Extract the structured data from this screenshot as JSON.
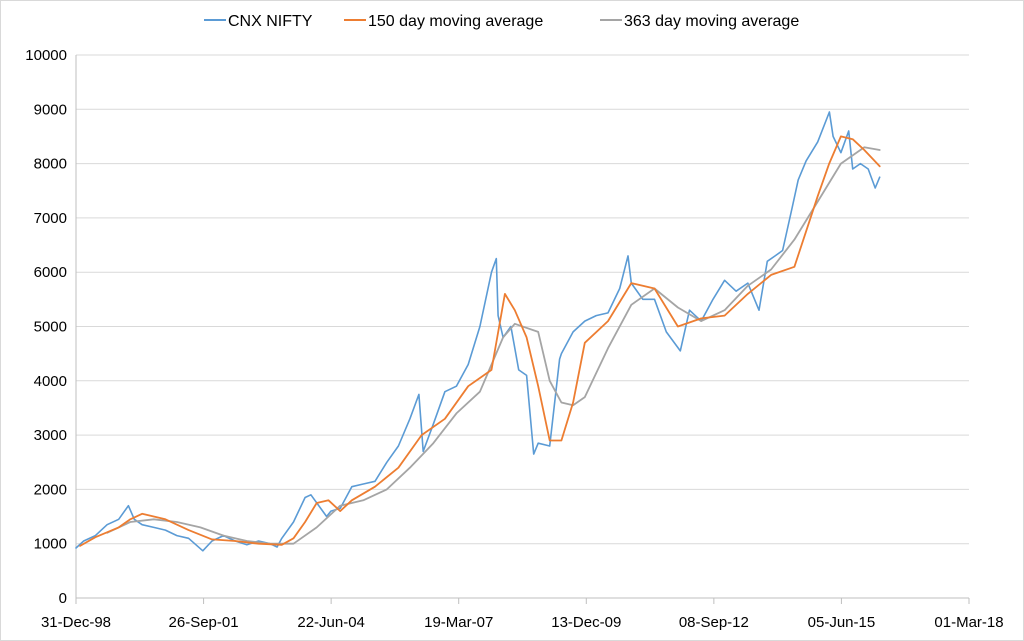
{
  "chart_data": {
    "type": "line",
    "title": "",
    "xlabel": "",
    "ylabel": "",
    "ylim": [
      0,
      10000
    ],
    "yticks": [
      0,
      1000,
      2000,
      3000,
      4000,
      5000,
      6000,
      7000,
      8000,
      9000,
      10000
    ],
    "ytick_labels": [
      "0",
      "1000",
      "2000",
      "3000",
      "4000",
      "5000",
      "6000",
      "7000",
      "8000",
      "9000",
      "10000"
    ],
    "xlim": [
      "1998-12-31",
      "2018-03-01"
    ],
    "xticks": [
      "1998-12-31",
      "2001-09-26",
      "2004-06-22",
      "2007-03-19",
      "2009-12-13",
      "2012-09-08",
      "2015-06-05",
      "2018-03-01"
    ],
    "xtick_labels": [
      "31-Dec-98",
      "26-Sep-01",
      "22-Jun-04",
      "19-Mar-07",
      "13-Dec-09",
      "08-Sep-12",
      "05-Jun-15",
      "01-Mar-18"
    ],
    "grid": "horizontal",
    "legend_position": "top",
    "series": [
      {
        "name": "CNX NIFTY",
        "color": "#5b9bd5",
        "x": [
          "1998-12-31",
          "1999-03-01",
          "1999-06-01",
          "1999-09-01",
          "1999-12-01",
          "2000-02-15",
          "2000-04-01",
          "2000-06-01",
          "2000-09-01",
          "2000-12-01",
          "2001-03-01",
          "2001-06-01",
          "2001-09-20",
          "2001-12-01",
          "2002-03-01",
          "2002-06-01",
          "2002-09-01",
          "2002-12-01",
          "2003-03-01",
          "2003-04-25",
          "2003-06-01",
          "2003-09-01",
          "2003-12-01",
          "2004-01-15",
          "2004-05-17",
          "2004-06-20",
          "2004-09-01",
          "2004-12-01",
          "2005-03-01",
          "2005-06-01",
          "2005-09-01",
          "2005-12-01",
          "2006-03-01",
          "2006-05-11",
          "2006-06-14",
          "2006-09-01",
          "2006-12-01",
          "2007-03-01",
          "2007-06-01",
          "2007-09-01",
          "2007-12-01",
          "2008-01-08",
          "2008-01-22",
          "2008-03-01",
          "2008-05-01",
          "2008-07-01",
          "2008-09-01",
          "2008-10-27",
          "2008-12-01",
          "2009-03-01",
          "2009-05-18",
          "2009-06-01",
          "2009-09-01",
          "2009-12-01",
          "2010-03-01",
          "2010-06-01",
          "2010-09-01",
          "2010-11-05",
          "2010-12-01",
          "2011-03-01",
          "2011-06-01",
          "2011-09-01",
          "2011-12-20",
          "2012-03-01",
          "2012-06-01",
          "2012-09-01",
          "2012-12-01",
          "2013-03-01",
          "2013-06-01",
          "2013-08-28",
          "2013-11-01",
          "2014-01-01",
          "2014-03-01",
          "2014-05-16",
          "2014-07-01",
          "2014-09-01",
          "2014-12-01",
          "2015-03-03",
          "2015-04-01",
          "2015-06-01",
          "2015-08-01",
          "2015-09-01",
          "2015-11-01",
          "2016-01-01",
          "2016-02-25",
          "2016-03-31"
        ],
        "values": [
          920,
          1050,
          1150,
          1350,
          1450,
          1700,
          1450,
          1350,
          1300,
          1250,
          1150,
          1100,
          870,
          1050,
          1150,
          1050,
          980,
          1050,
          1000,
          940,
          1100,
          1400,
          1850,
          1900,
          1500,
          1600,
          1650,
          2050,
          2100,
          2150,
          2500,
          2800,
          3300,
          3750,
          2700,
          3200,
          3800,
          3900,
          4300,
          5000,
          6000,
          6250,
          5200,
          4800,
          5000,
          4200,
          4100,
          2650,
          2850,
          2800,
          4400,
          4500,
          4900,
          5100,
          5200,
          5250,
          5700,
          6300,
          5800,
          5500,
          5500,
          4900,
          4550,
          5300,
          5100,
          5500,
          5850,
          5650,
          5800,
          5300,
          6200,
          6300,
          6400,
          7200,
          7700,
          8050,
          8400,
          8950,
          8500,
          8200,
          8600,
          7900,
          8000,
          7900,
          7550,
          7750
        ]
      },
      {
        "name": "150 day moving average",
        "color": "#ed7d31",
        "x": [
          "1999-02-01",
          "1999-06-01",
          "1999-12-01",
          "2000-03-01",
          "2000-06-01",
          "2000-12-01",
          "2001-06-01",
          "2001-12-01",
          "2002-06-01",
          "2002-12-01",
          "2003-06-01",
          "2003-09-01",
          "2003-12-01",
          "2004-03-01",
          "2004-06-01",
          "2004-09-01",
          "2004-12-01",
          "2005-06-01",
          "2005-12-01",
          "2006-06-01",
          "2006-12-01",
          "2007-06-01",
          "2007-12-01",
          "2008-03-15",
          "2008-06-01",
          "2008-09-01",
          "2008-12-01",
          "2009-03-01",
          "2009-06-01",
          "2009-09-01",
          "2009-12-01",
          "2010-06-01",
          "2010-12-01",
          "2011-06-01",
          "2011-12-01",
          "2012-06-01",
          "2012-12-01",
          "2013-06-01",
          "2013-12-01",
          "2014-06-01",
          "2014-12-01",
          "2015-03-01",
          "2015-06-01",
          "2015-09-01",
          "2015-12-01",
          "2016-03-31"
        ],
        "values": [
          960,
          1120,
          1300,
          1450,
          1550,
          1450,
          1250,
          1080,
          1050,
          1000,
          980,
          1100,
          1400,
          1750,
          1800,
          1600,
          1800,
          2050,
          2400,
          3000,
          3300,
          3900,
          4200,
          5600,
          5300,
          4800,
          3900,
          2900,
          2900,
          3600,
          4700,
          5100,
          5800,
          5700,
          5000,
          5150,
          5200,
          5600,
          5950,
          6100,
          7400,
          8000,
          8500,
          8450,
          8250,
          7950
        ]
      },
      {
        "name": "363 day moving average",
        "color": "#a5a5a5",
        "x": [
          "1999-09-01",
          "2000-03-01",
          "2000-09-01",
          "2001-03-01",
          "2001-09-01",
          "2002-03-01",
          "2002-09-01",
          "2003-03-01",
          "2003-09-01",
          "2004-03-01",
          "2004-09-01",
          "2005-03-01",
          "2005-09-01",
          "2006-03-01",
          "2006-09-01",
          "2007-03-01",
          "2007-09-01",
          "2008-03-01",
          "2008-06-01",
          "2008-12-01",
          "2009-03-01",
          "2009-06-01",
          "2009-09-01",
          "2009-12-01",
          "2010-06-01",
          "2010-12-01",
          "2011-06-01",
          "2011-12-01",
          "2012-06-01",
          "2012-12-01",
          "2013-06-01",
          "2013-12-01",
          "2014-06-01",
          "2014-12-01",
          "2015-06-01",
          "2015-12-01",
          "2016-03-31"
        ],
        "values": [
          1200,
          1400,
          1450,
          1400,
          1300,
          1150,
          1050,
          1000,
          1000,
          1300,
          1700,
          1800,
          2000,
          2400,
          2850,
          3400,
          3800,
          4800,
          5050,
          4900,
          4000,
          3600,
          3550,
          3700,
          4600,
          5400,
          5700,
          5350,
          5100,
          5300,
          5750,
          6050,
          6600,
          7300,
          8000,
          8300,
          8250
        ]
      }
    ]
  }
}
